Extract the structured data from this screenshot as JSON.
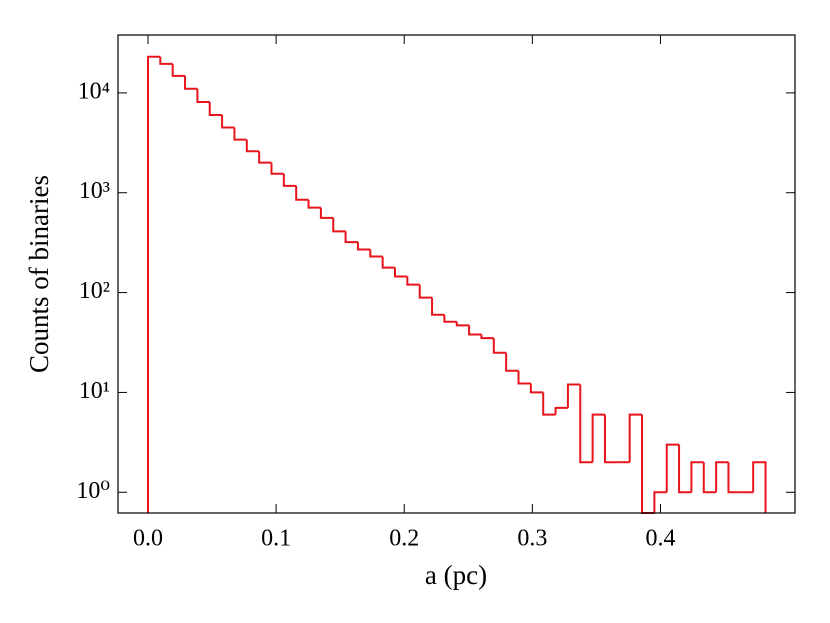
{
  "chart_data": {
    "type": "histogram",
    "xlabel": "a (pc)",
    "ylabel": "Counts of binaries",
    "color": "#e8141b",
    "log_y": true,
    "bins": [
      0,
      0.00964,
      0.01928,
      0.02892,
      0.03856,
      0.0482,
      0.05784,
      0.06748,
      0.07712,
      0.08676,
      0.0964,
      0.10604,
      0.11568,
      0.12532,
      0.13496,
      0.1446,
      0.15424,
      0.16388,
      0.17352,
      0.18316,
      0.1928,
      0.20244,
      0.21208,
      0.22172,
      0.23136,
      0.241,
      0.25064,
      0.26028,
      0.26992,
      0.27956,
      0.2892,
      0.29884,
      0.30848,
      0.31812,
      0.32776,
      0.3374,
      0.34704,
      0.35668,
      0.36632,
      0.37596,
      0.3856,
      0.39524,
      0.40488,
      0.41452,
      0.42416,
      0.4338,
      0.44344,
      0.45308,
      0.46272,
      0.47236,
      0.482
    ],
    "values": [
      23000,
      19500,
      14800,
      11000,
      8100,
      6000,
      4500,
      3400,
      2600,
      2000,
      1550,
      1170,
      850,
      710,
      560,
      410,
      320,
      270,
      230,
      178,
      145,
      120,
      89,
      60,
      51,
      47,
      38,
      35,
      25,
      16.5,
      12.3,
      10,
      6,
      7,
      12,
      2,
      6,
      2,
      2,
      6,
      0,
      1,
      3,
      1,
      2,
      1,
      2,
      1,
      1,
      2
    ],
    "xlim": [
      -0.0234,
      0.505
    ],
    "ylim": [
      0.62,
      38000
    ],
    "xticks": [
      {
        "value": 0,
        "label": "0.0"
      },
      0.1,
      0.2,
      0.3,
      0.4
    ],
    "yticks": [
      {
        "value": 1,
        "label": "10⁰"
      },
      {
        "value": 10,
        "label": "10¹"
      },
      {
        "value": 100,
        "label": "10²"
      },
      {
        "value": 1000,
        "label": "10³"
      },
      {
        "value": 10000,
        "label": "10⁴"
      }
    ]
  }
}
